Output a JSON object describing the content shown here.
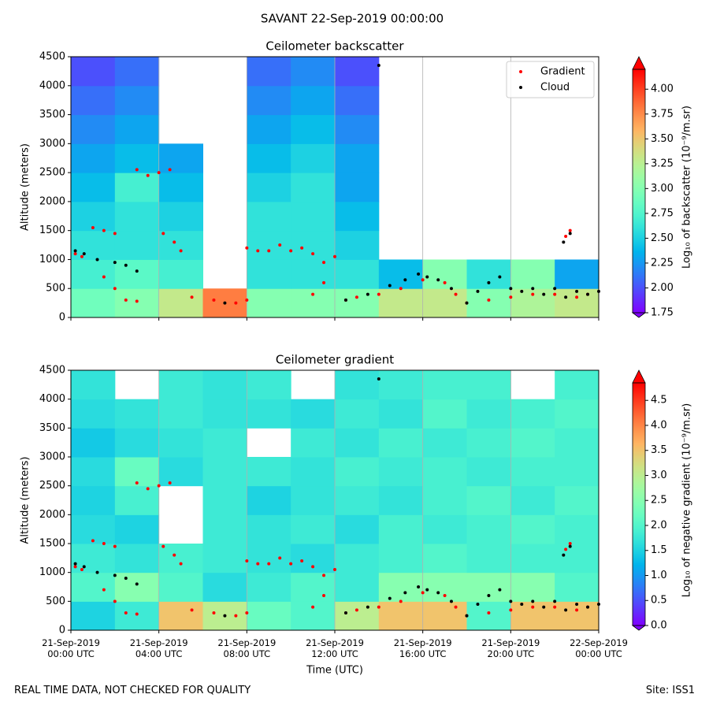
{
  "title": "SAVANT 22-Sep-2019 00:00:00",
  "footer_left": "REAL TIME DATA, NOT CHECKED FOR QUALITY",
  "footer_right": "Site: ISS1",
  "chart_data": [
    {
      "type": "heatmap",
      "title": "Ceilometer backscatter",
      "ylabel": "Altitude (meters)",
      "colormap": "rainbow",
      "grid": "x",
      "show_xtick_labels": false,
      "legend": "upper right",
      "xlim": [
        0,
        24
      ],
      "xticks": [
        0,
        4,
        8,
        12,
        16,
        20,
        24
      ],
      "ylim": [
        0,
        4500
      ],
      "yticks": [
        0,
        500,
        1000,
        1500,
        2000,
        2500,
        3000,
        3500,
        4000,
        4500
      ],
      "colorbar_label": "Log₁₀ of backscatter (10⁻⁹/m.sr)",
      "clim": [
        1.75,
        4.2
      ],
      "cticks": [
        1.75,
        {
          "value": 2,
          "label": "2.00"
        },
        2.25,
        {
          "value": 2.5,
          "label": "2.50"
        },
        2.75,
        {
          "value": 3,
          "label": "3.00"
        },
        3.25,
        {
          "value": 3.5,
          "label": "3.50"
        },
        3.75,
        {
          "value": 4,
          "label": "4.00"
        }
      ],
      "z": [
        [
          2.9,
          3.0,
          3.3,
          3.8,
          3.0,
          3.0,
          3.0,
          3.3,
          3.3,
          3.0,
          3.2,
          3.3
        ],
        [
          2.7,
          2.8,
          2.7,
          null,
          2.6,
          2.6,
          2.6,
          2.4,
          3.0,
          2.6,
          3.0,
          2.3
        ],
        [
          2.6,
          2.6,
          2.6,
          null,
          2.6,
          2.6,
          2.5,
          null,
          null,
          null,
          null,
          null
        ],
        [
          2.5,
          2.6,
          2.5,
          null,
          2.6,
          2.6,
          2.4,
          null,
          null,
          null,
          null,
          null
        ],
        [
          2.4,
          2.7,
          2.4,
          null,
          2.5,
          2.6,
          2.3,
          null,
          null,
          null,
          null,
          null
        ],
        [
          2.3,
          2.4,
          2.3,
          null,
          2.4,
          2.5,
          2.3,
          null,
          null,
          null,
          null,
          null
        ],
        [
          2.2,
          2.3,
          null,
          null,
          2.3,
          2.4,
          2.2,
          null,
          null,
          null,
          null,
          null
        ],
        [
          2.1,
          2.2,
          null,
          null,
          2.2,
          2.3,
          2.1,
          null,
          null,
          null,
          null,
          null
        ],
        [
          2.0,
          2.1,
          null,
          null,
          2.1,
          2.2,
          2.0,
          null,
          null,
          null,
          null,
          null
        ]
      ],
      "series": [
        {
          "name": "Gradient",
          "color": "#ff0000",
          "x": [
            0.2,
            0.5,
            1,
            1.5,
            2,
            1.5,
            2,
            2.5,
            3,
            3,
            3.5,
            4,
            4.5,
            4.2,
            4.7,
            5,
            5.5,
            6.5,
            7.5,
            8,
            8,
            8.5,
            9,
            9.5,
            10,
            10.5,
            11,
            11.5,
            12,
            11,
            11.5,
            12.5,
            13,
            14,
            15,
            16,
            17,
            17.5,
            18,
            19,
            20,
            21,
            22,
            23,
            23.5,
            22.5,
            22.7
          ],
          "values": [
            1100,
            1050,
            1550,
            1500,
            1450,
            700,
            500,
            300,
            280,
            2550,
            2450,
            2500,
            2550,
            1450,
            1300,
            1150,
            350,
            300,
            250,
            300,
            1200,
            1150,
            1150,
            1250,
            1150,
            1200,
            1100,
            950,
            1050,
            400,
            600,
            300,
            350,
            400,
            500,
            650,
            600,
            400,
            250,
            300,
            350,
            400,
            400,
            350,
            400,
            1400,
            1500
          ]
        },
        {
          "name": "Cloud",
          "color": "#000000",
          "x": [
            0.2,
            0.6,
            1.2,
            2,
            2.5,
            3,
            7,
            12.5,
            13.5,
            14.5,
            15.2,
            15.8,
            16.2,
            16.7,
            17.3,
            18,
            18.5,
            19,
            19.5,
            20,
            20.5,
            21,
            21.5,
            22,
            22.5,
            23,
            23.5,
            24,
            22.4,
            22.7,
            14
          ],
          "values": [
            1150,
            1100,
            1000,
            950,
            900,
            800,
            250,
            300,
            400,
            550,
            650,
            750,
            700,
            650,
            500,
            250,
            450,
            600,
            700,
            500,
            450,
            500,
            400,
            500,
            350,
            450,
            400,
            450,
            1300,
            1450,
            4350
          ]
        }
      ]
    },
    {
      "type": "heatmap",
      "title": "Ceilometer gradient",
      "ylabel": "Altitude (meters)",
      "xlabel": "Time (UTC)",
      "colormap": "rainbow",
      "grid": "x",
      "show_xtick_labels": true,
      "xlim": [
        0,
        24
      ],
      "xticks": [
        {
          "value": 0,
          "label": "21-Sep-2019\n00:00 UTC"
        },
        {
          "value": 4,
          "label": "21-Sep-2019\n04:00 UTC"
        },
        {
          "value": 8,
          "label": "21-Sep-2019\n08:00 UTC"
        },
        {
          "value": 12,
          "label": "21-Sep-2019\n12:00 UTC"
        },
        {
          "value": 16,
          "label": "21-Sep-2019\n16:00 UTC"
        },
        {
          "value": 20,
          "label": "21-Sep-2019\n20:00 UTC"
        },
        {
          "value": 24,
          "label": "22-Sep-2019\n00:00 UTC"
        }
      ],
      "ylim": [
        0,
        4500
      ],
      "yticks": [
        0,
        500,
        1000,
        1500,
        2000,
        2500,
        3000,
        3500,
        4000,
        4500
      ],
      "colorbar_label": "Log₁₀ of negative gradient (10⁻⁹/m.sr)",
      "clim": [
        0,
        4.85
      ],
      "cticks": [
        {
          "value": 0,
          "label": "0.0"
        },
        0.5,
        {
          "value": 1,
          "label": "1.0"
        },
        1.5,
        {
          "value": 2,
          "label": "2.0"
        },
        2.5,
        {
          "value": 3,
          "label": "3.0"
        },
        3.5,
        {
          "value": 4,
          "label": "4.0"
        },
        4.5
      ],
      "z": [
        [
          1.5,
          1.8,
          3.5,
          3.0,
          2.2,
          2.0,
          3.0,
          3.5,
          3.5,
          2.0,
          3.5,
          3.5
        ],
        [
          2.0,
          2.5,
          2.0,
          1.6,
          1.8,
          2.0,
          1.8,
          2.5,
          2.5,
          2.5,
          2.5,
          2.0
        ],
        [
          1.8,
          1.7,
          1.9,
          1.8,
          1.7,
          1.6,
          1.8,
          1.9,
          2.0,
          1.9,
          1.9,
          1.9
        ],
        [
          1.6,
          1.5,
          null,
          1.8,
          1.7,
          1.8,
          1.6,
          1.9,
          1.8,
          1.9,
          2.0,
          1.9
        ],
        [
          1.5,
          1.9,
          null,
          1.8,
          1.5,
          1.7,
          1.8,
          1.7,
          1.9,
          2.0,
          1.8,
          2.0
        ],
        [
          1.6,
          2.2,
          1.6,
          1.8,
          1.8,
          1.7,
          1.9,
          1.8,
          1.9,
          1.8,
          1.9,
          1.9
        ],
        [
          1.4,
          1.6,
          1.7,
          1.8,
          null,
          1.8,
          1.7,
          1.9,
          1.8,
          1.9,
          2.0,
          1.9
        ],
        [
          1.6,
          1.7,
          1.8,
          1.7,
          1.7,
          1.6,
          1.8,
          1.7,
          2.0,
          1.8,
          1.9,
          2.0
        ],
        [
          1.7,
          null,
          1.8,
          1.7,
          1.8,
          null,
          1.7,
          1.8,
          1.9,
          1.9,
          null,
          1.9
        ]
      ],
      "series": [
        {
          "name": "Gradient",
          "color": "#ff0000",
          "x": [
            0.2,
            0.5,
            1,
            1.5,
            2,
            1.5,
            2,
            2.5,
            3,
            3,
            3.5,
            4,
            4.5,
            4.2,
            4.7,
            5,
            5.5,
            6.5,
            7.5,
            8,
            8,
            8.5,
            9,
            9.5,
            10,
            10.5,
            11,
            11.5,
            12,
            11,
            11.5,
            12.5,
            13,
            14,
            15,
            16,
            17,
            17.5,
            18,
            19,
            20,
            21,
            22,
            23,
            23.5,
            22.5,
            22.7
          ],
          "values": [
            1100,
            1050,
            1550,
            1500,
            1450,
            700,
            500,
            300,
            280,
            2550,
            2450,
            2500,
            2550,
            1450,
            1300,
            1150,
            350,
            300,
            250,
            300,
            1200,
            1150,
            1150,
            1250,
            1150,
            1200,
            1100,
            950,
            1050,
            400,
            600,
            300,
            350,
            400,
            500,
            650,
            600,
            400,
            250,
            300,
            350,
            400,
            400,
            350,
            400,
            1400,
            1500
          ]
        },
        {
          "name": "Cloud",
          "color": "#000000",
          "x": [
            0.2,
            0.6,
            1.2,
            2,
            2.5,
            3,
            7,
            12.5,
            13.5,
            14.5,
            15.2,
            15.8,
            16.2,
            16.7,
            17.3,
            18,
            18.5,
            19,
            19.5,
            20,
            20.5,
            21,
            21.5,
            22,
            22.5,
            23,
            23.5,
            24,
            22.4,
            22.7,
            14
          ],
          "values": [
            1150,
            1100,
            1000,
            950,
            900,
            800,
            250,
            300,
            400,
            550,
            650,
            750,
            700,
            650,
            500,
            250,
            450,
            600,
            700,
            500,
            450,
            500,
            400,
            500,
            350,
            450,
            400,
            450,
            1300,
            1450,
            4350
          ]
        }
      ]
    }
  ]
}
